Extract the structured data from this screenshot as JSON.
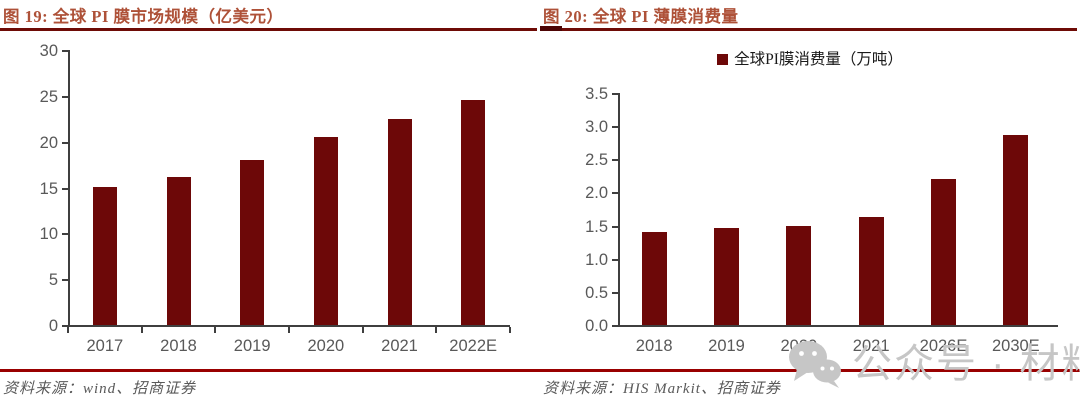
{
  "colors": {
    "bar": "#6d0808",
    "title": "#ae5138",
    "title_rule": "#6e0b06",
    "source_rule": "#990000",
    "axis": "#3f3f3f",
    "tick_label": "#595959",
    "legend_text": "#1a1a1a",
    "source_text": "#595959",
    "watermark": "#c6c6c6"
  },
  "watermark": {
    "icon": "wechat-icon",
    "text": "公众号 · 材料圈"
  },
  "chart_data": [
    {
      "type": "bar",
      "title": "图 19: 全球 PI 膜市场规模（亿美元）",
      "legend": null,
      "categories": [
        "2017",
        "2018",
        "2019",
        "2020",
        "2021",
        "2022E"
      ],
      "values": [
        15.1,
        16.2,
        18.0,
        20.5,
        22.5,
        24.5
      ],
      "xlabel": "",
      "ylabel": "",
      "ylim": [
        0,
        30
      ],
      "ytick_step": 5,
      "ytick_decimals": 0,
      "grid": false,
      "legend_position": "none",
      "source": "资料来源：wind、招商证券"
    },
    {
      "type": "bar",
      "title": "图 20: 全球 PI 薄膜消费量",
      "legend": "全球PI膜消费量（万吨）",
      "categories": [
        "2018",
        "2019",
        "2020",
        "2021",
        "2026E",
        "2030E"
      ],
      "values": [
        1.4,
        1.46,
        1.5,
        1.63,
        2.2,
        2.87
      ],
      "xlabel": "",
      "ylabel": "",
      "ylim": [
        0,
        3.5
      ],
      "ytick_step": 0.5,
      "ytick_decimals": 1,
      "grid": false,
      "legend_position": "top",
      "source": "资料来源：HIS Markit、招商证券"
    }
  ]
}
